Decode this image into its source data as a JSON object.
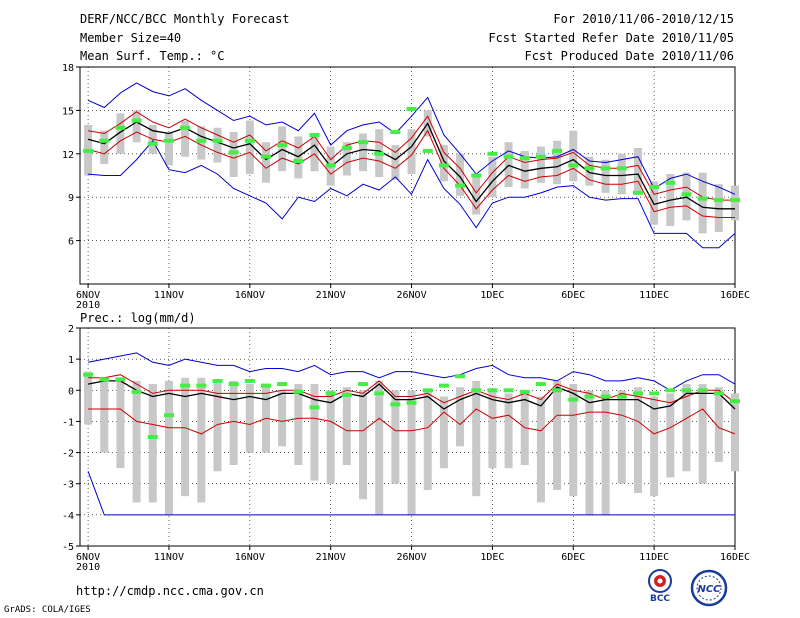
{
  "header": {
    "title": "DERF/NCC/BCC Monthly Forecast",
    "member": "Member Size=40",
    "variable": "Mean Surf. Temp.: °C",
    "period": "For 2010/11/06-2010/12/15",
    "started": "Fcst Started Refer Date 2010/11/05",
    "produced": "Fcst Produced Date 2010/11/06"
  },
  "footer": {
    "url": "http://cmdp.ncc.cma.gov.cn",
    "grads": "GrADS: COLA/IGES"
  },
  "logos": {
    "bcc": "BCC",
    "ncc": "NCC"
  },
  "colors": {
    "max_min": "#0000cc",
    "spread": "#cc0000",
    "mean": "#000000",
    "box": "#c8c8c8",
    "obs": "#44ee44"
  },
  "chart_data": [
    {
      "type": "line",
      "title": "Mean Surf. Temp.: °C",
      "ylim": [
        3,
        18
      ],
      "yticks": [
        6,
        9,
        12,
        15,
        18
      ],
      "xlim": [
        0.5,
        40.5
      ],
      "xticks": [
        {
          "x": 1,
          "label": "6NOV",
          "sub": "2010"
        },
        {
          "x": 6,
          "label": "11NOV"
        },
        {
          "x": 11,
          "label": "16NOV"
        },
        {
          "x": 16,
          "label": "21NOV"
        },
        {
          "x": 21,
          "label": "26NOV"
        },
        {
          "x": 26,
          "label": "1DEC"
        },
        {
          "x": 31,
          "label": "6DEC"
        },
        {
          "x": 36,
          "label": "11DEC"
        },
        {
          "x": 41,
          "label": "16DEC"
        }
      ],
      "series": [
        {
          "name": "max",
          "values": [
            15.7,
            15.2,
            16.2,
            16.9,
            16.3,
            16.0,
            16.5,
            15.7,
            15.0,
            14.3,
            14.6,
            14.0,
            14.2,
            13.6,
            14.8,
            12.6,
            13.6,
            14.0,
            14.2,
            13.4,
            14.6,
            15.9,
            13.3,
            12.0,
            10.6,
            11.5,
            12.2,
            11.8,
            11.7,
            11.8,
            12.3,
            11.5,
            11.4,
            11.6,
            11.8,
            9.6,
            10.3,
            10.6,
            10.1,
            9.7,
            9.2
          ]
        },
        {
          "name": "spread_high",
          "values": [
            13.6,
            13.4,
            14.1,
            14.9,
            14.2,
            13.8,
            14.4,
            13.8,
            13.3,
            12.8,
            13.3,
            12.2,
            12.9,
            12.4,
            13.2,
            11.6,
            12.6,
            12.9,
            12.8,
            12.1,
            13.1,
            14.6,
            12.1,
            11.0,
            9.3,
            10.7,
            11.8,
            11.4,
            11.6,
            11.7,
            12.1,
            11.2,
            11.0,
            11.0,
            11.2,
            9.2,
            9.5,
            9.7,
            9.0,
            8.8,
            8.8
          ]
        },
        {
          "name": "mean",
          "values": [
            13.0,
            12.7,
            13.5,
            14.2,
            13.6,
            13.4,
            13.8,
            13.2,
            12.8,
            12.4,
            12.7,
            11.6,
            12.3,
            11.8,
            12.6,
            11.1,
            12.0,
            12.3,
            12.2,
            11.6,
            12.5,
            14.1,
            11.5,
            10.4,
            8.7,
            10.1,
            11.2,
            10.8,
            11.0,
            11.1,
            11.6,
            10.7,
            10.5,
            10.5,
            10.6,
            8.5,
            8.8,
            9.0,
            8.3,
            8.2,
            8.2
          ]
        },
        {
          "name": "spread_low",
          "values": [
            12.3,
            12.0,
            12.9,
            13.5,
            13.0,
            12.8,
            13.2,
            12.6,
            12.1,
            11.7,
            12.1,
            11.0,
            11.7,
            11.3,
            12.0,
            10.6,
            11.4,
            11.7,
            11.5,
            11.0,
            11.9,
            13.6,
            11.0,
            9.8,
            8.2,
            9.5,
            10.5,
            10.1,
            10.4,
            10.5,
            11.0,
            10.2,
            9.9,
            9.9,
            10.1,
            8.0,
            8.3,
            8.4,
            7.7,
            7.6,
            7.6
          ]
        },
        {
          "name": "min",
          "values": [
            10.6,
            10.5,
            10.5,
            11.6,
            12.9,
            10.9,
            10.7,
            11.2,
            10.6,
            9.6,
            9.1,
            8.6,
            7.5,
            9.0,
            8.7,
            9.6,
            9.1,
            9.9,
            9.5,
            10.4,
            9.2,
            11.6,
            9.6,
            8.5,
            6.9,
            8.6,
            9.0,
            9.0,
            9.3,
            9.7,
            9.8,
            9.0,
            8.8,
            8.9,
            8.9,
            6.5,
            6.5,
            6.5,
            5.5,
            5.5,
            6.5
          ]
        }
      ],
      "boxes": {
        "high": [
          14.0,
          13.6,
          14.8,
          15.0,
          14.0,
          13.5,
          14.3,
          13.9,
          13.8,
          13.5,
          14.3,
          12.8,
          13.9,
          13.2,
          13.3,
          12.5,
          12.8,
          13.4,
          13.7,
          12.6,
          13.7,
          15.0,
          12.6,
          12.0,
          10.6,
          11.8,
          12.8,
          12.2,
          12.5,
          12.9,
          13.6,
          11.8,
          11.6,
          12.0,
          12.4,
          10.1,
          10.6,
          10.7,
          10.7,
          9.9,
          9.8
        ],
        "low": [
          10.5,
          11.3,
          12.0,
          12.8,
          12.0,
          11.2,
          11.8,
          11.6,
          11.4,
          10.4,
          10.6,
          10.0,
          10.8,
          10.3,
          10.8,
          9.8,
          10.5,
          10.8,
          10.4,
          10.2,
          10.6,
          13.2,
          10.1,
          9.1,
          7.8,
          9.0,
          9.7,
          9.6,
          10.0,
          9.9,
          10.1,
          9.8,
          9.3,
          9.2,
          9.4,
          7.1,
          7.0,
          7.4,
          6.5,
          6.6,
          7.4
        ]
      },
      "observed": [
        12.2,
        12.9,
        13.8,
        14.3,
        12.7,
        12.9,
        13.8,
        12.9,
        12.9,
        12.1,
        12.9,
        11.8,
        12.6,
        11.5,
        13.3,
        11.2,
        12.4,
        12.8,
        12.0,
        13.5,
        15.1,
        12.2,
        11.2,
        9.8,
        10.5,
        12.0,
        11.8,
        11.7,
        11.8,
        12.2,
        11.2,
        11.0,
        11.0,
        11.0,
        9.3,
        9.7,
        10.0,
        9.2,
        8.9,
        8.8,
        8.8
      ]
    },
    {
      "type": "line",
      "title": "Prec.: log(mm/d)",
      "ylim": [
        -5,
        2
      ],
      "yticks": [
        -5,
        -4,
        -3,
        -2,
        -1,
        0,
        1,
        2
      ],
      "xlim": [
        0.5,
        40.5
      ],
      "xticks": [
        {
          "x": 1,
          "label": "6NOV",
          "sub": "2010"
        },
        {
          "x": 6,
          "label": "11NOV"
        },
        {
          "x": 11,
          "label": "16NOV"
        },
        {
          "x": 16,
          "label": "21NOV"
        },
        {
          "x": 21,
          "label": "26NOV"
        },
        {
          "x": 26,
          "label": "1DEC"
        },
        {
          "x": 31,
          "label": "6DEC"
        },
        {
          "x": 36,
          "label": "11DEC"
        },
        {
          "x": 41,
          "label": "16DEC"
        }
      ],
      "series": [
        {
          "name": "max",
          "values": [
            0.9,
            1.0,
            1.1,
            1.2,
            0.9,
            0.8,
            1.0,
            0.9,
            0.8,
            0.8,
            0.6,
            0.7,
            0.7,
            0.6,
            0.8,
            0.5,
            0.6,
            0.6,
            0.4,
            0.6,
            0.6,
            0.5,
            0.4,
            0.5,
            0.7,
            0.8,
            0.5,
            0.4,
            0.4,
            0.3,
            0.6,
            0.5,
            0.3,
            0.3,
            0.4,
            0.3,
            0.0,
            0.3,
            0.5,
            0.5,
            0.2
          ]
        },
        {
          "name": "spread_high",
          "values": [
            0.4,
            0.4,
            0.5,
            0.2,
            -0.1,
            0.0,
            0.0,
            0.0,
            -0.1,
            -0.1,
            -0.1,
            -0.1,
            0.0,
            0.0,
            -0.2,
            -0.2,
            0.0,
            -0.1,
            0.3,
            -0.2,
            -0.2,
            -0.1,
            -0.4,
            -0.2,
            0.0,
            -0.2,
            -0.3,
            -0.1,
            -0.3,
            0.2,
            0.0,
            -0.1,
            -0.3,
            -0.1,
            -0.2,
            -0.3,
            -0.4,
            -0.2,
            0.0,
            0.0,
            -0.4
          ]
        },
        {
          "name": "mean",
          "values": [
            0.2,
            0.3,
            0.3,
            0.0,
            -0.2,
            -0.1,
            -0.2,
            -0.1,
            -0.2,
            -0.3,
            -0.2,
            -0.3,
            -0.1,
            -0.1,
            -0.3,
            -0.4,
            -0.1,
            -0.2,
            0.2,
            -0.3,
            -0.3,
            -0.2,
            -0.6,
            -0.3,
            -0.1,
            -0.3,
            -0.4,
            -0.3,
            -0.5,
            0.1,
            -0.1,
            -0.4,
            -0.3,
            -0.3,
            -0.3,
            -0.6,
            -0.5,
            -0.1,
            -0.1,
            -0.1,
            -0.6
          ]
        },
        {
          "name": "spread_low",
          "values": [
            -0.6,
            -0.6,
            -0.6,
            -1.0,
            -1.1,
            -1.2,
            -1.2,
            -1.4,
            -1.1,
            -1.0,
            -1.1,
            -0.9,
            -1.0,
            -0.9,
            -0.9,
            -1.0,
            -1.3,
            -1.3,
            -0.9,
            -1.3,
            -1.3,
            -1.2,
            -0.7,
            -1.1,
            -0.6,
            -0.9,
            -0.8,
            -1.2,
            -1.3,
            -0.8,
            -0.8,
            -0.7,
            -0.7,
            -0.8,
            -1.0,
            -1.4,
            -1.2,
            -0.9,
            -0.6,
            -1.2,
            -1.4
          ]
        },
        {
          "name": "min",
          "values": [
            -2.6,
            -4.0,
            -4.0,
            -4.0,
            -4.0,
            -4.0,
            -4.0,
            -4.0,
            -4.0,
            -4.0,
            -4.0,
            -4.0,
            -4.0,
            -4.0,
            -4.0,
            -4.0,
            -4.0,
            -4.0,
            -4.0,
            -4.0,
            -4.0,
            -4.0,
            -4.0,
            -4.0,
            -4.0,
            -4.0,
            -4.0,
            -4.0,
            -4.0,
            -4.0,
            -4.0,
            -4.0,
            -4.0,
            -4.0,
            -4.0,
            -4.0,
            -4.0,
            -4.0,
            -4.0,
            -4.0,
            -4.0
          ]
        }
      ],
      "boxes": {
        "high": [
          0.6,
          0.3,
          0.4,
          0.3,
          0.2,
          0.3,
          0.4,
          0.4,
          0.3,
          0.3,
          0.2,
          0.1,
          0.0,
          0.2,
          0.2,
          0.0,
          0.1,
          0.0,
          0.3,
          0.0,
          0.0,
          0.0,
          -0.2,
          0.1,
          0.3,
          0.0,
          -0.1,
          0.0,
          -0.2,
          0.3,
          0.2,
          0.0,
          0.0,
          0.0,
          0.1,
          -0.2,
          -0.1,
          0.2,
          0.2,
          0.1,
          -0.1
        ],
        "low": [
          -1.1,
          -2.0,
          -2.5,
          -3.6,
          -3.6,
          -4.0,
          -3.4,
          -3.6,
          -2.6,
          -2.4,
          -2.0,
          -2.0,
          -1.8,
          -2.4,
          -2.9,
          -3.0,
          -2.4,
          -3.5,
          -4.0,
          -3.0,
          -4.0,
          -3.2,
          -2.5,
          -1.8,
          -3.4,
          -2.5,
          -2.5,
          -2.4,
          -3.6,
          -3.2,
          -3.4,
          -4.0,
          -4.0,
          -3.0,
          -3.3,
          -3.4,
          -2.8,
          -2.6,
          -3.0,
          -2.3,
          -2.6
        ]
      },
      "observed": [
        0.5,
        0.35,
        0.35,
        -0.05,
        -1.5,
        -0.8,
        0.15,
        0.15,
        0.3,
        0.2,
        0.3,
        0.15,
        0.2,
        -0.05,
        -0.55,
        -0.1,
        -0.15,
        0.2,
        -0.1,
        -0.45,
        -0.4,
        0.0,
        0.15,
        0.45,
        0.0,
        0.0,
        0.0,
        -0.05,
        0.2,
        0.0,
        -0.3,
        -0.2,
        -0.2,
        -0.2,
        -0.1,
        -0.1,
        0.0,
        0.0,
        0.0,
        -0.1,
        -0.35
      ]
    }
  ]
}
